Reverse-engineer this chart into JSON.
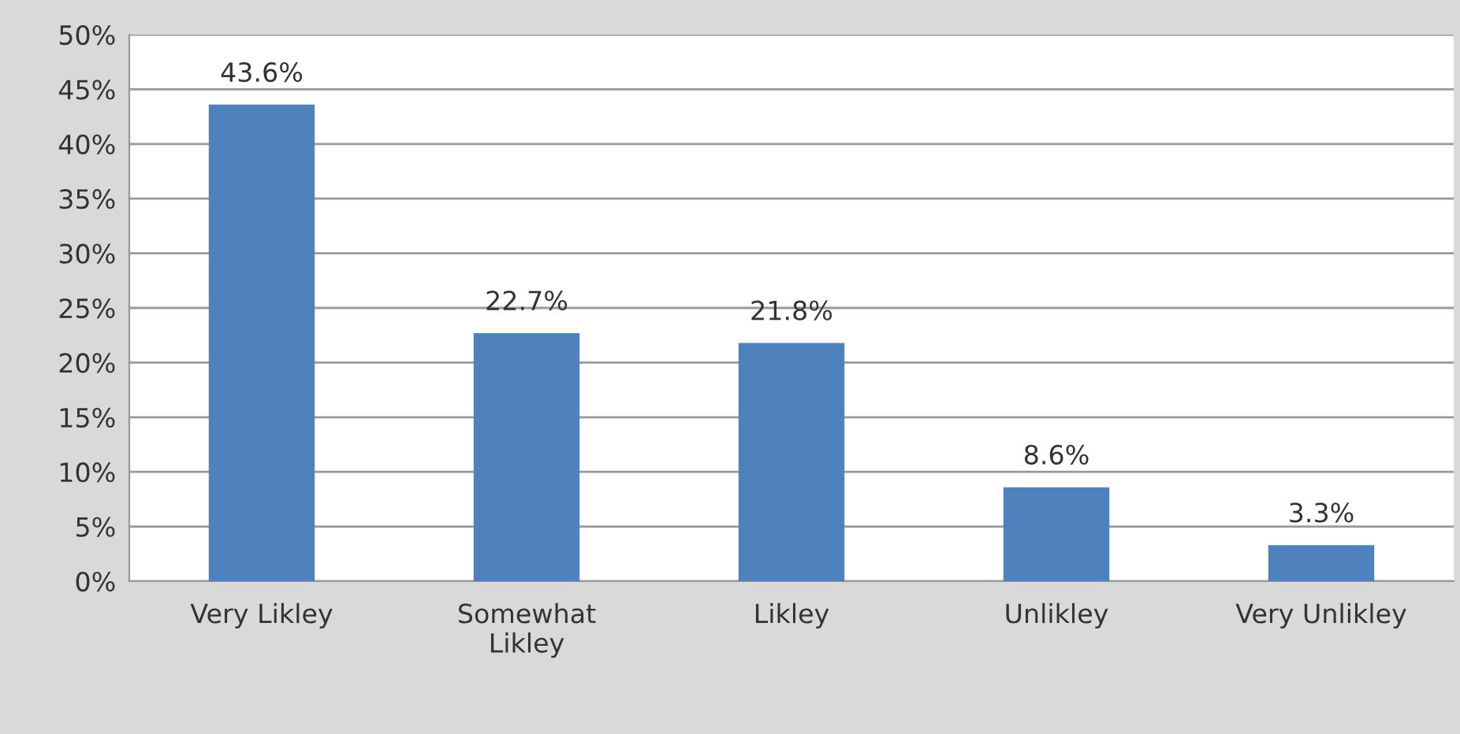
{
  "chart_data": {
    "type": "bar",
    "categories": [
      "Very Likley",
      "Somewhat\nLikley",
      "Likley",
      "Unlikley",
      "Very Unlikley"
    ],
    "values": [
      43.6,
      22.7,
      21.8,
      8.6,
      3.3
    ],
    "value_labels": [
      "43.6%",
      "22.7%",
      "21.8%",
      "8.6%",
      "3.3%"
    ],
    "color": "#4f81bd",
    "ylim": [
      0,
      50
    ],
    "yticks": [
      {
        "value": 0,
        "label": "0%"
      },
      {
        "value": 5,
        "label": "5%"
      },
      {
        "value": 10,
        "label": "10%"
      },
      {
        "value": 15,
        "label": "15%"
      },
      {
        "value": 20,
        "label": "20%"
      },
      {
        "value": 25,
        "label": "25%"
      },
      {
        "value": 30,
        "label": "30%"
      },
      {
        "value": 35,
        "label": "35%"
      },
      {
        "value": 40,
        "label": "40%"
      },
      {
        "value": 45,
        "label": "45%"
      },
      {
        "value": 50,
        "label": "50%"
      }
    ],
    "grid": "y"
  }
}
